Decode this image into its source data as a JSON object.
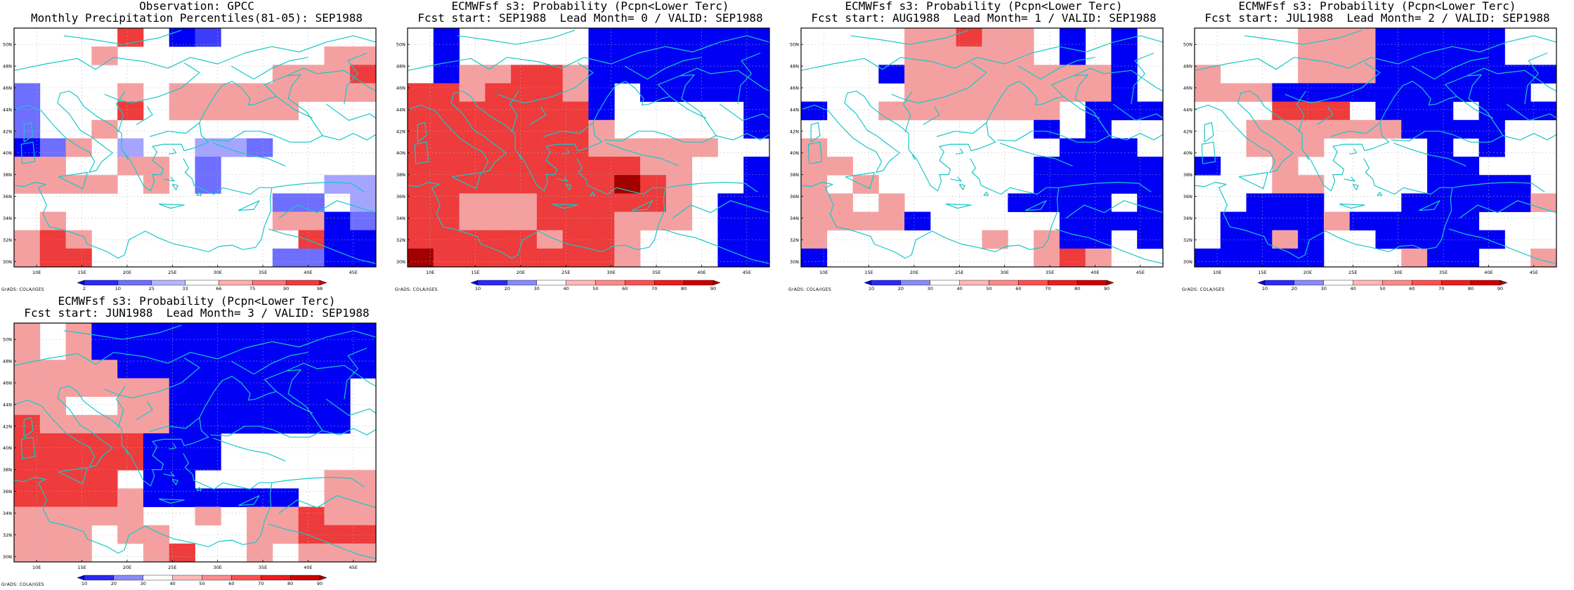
{
  "panels": [
    {
      "title_line1": "Observation: GPCC",
      "title_line2": "Monthly Precipitation Percentiles(81-05): SEP1988",
      "scale": "obs",
      "grid": [
        "0000R0B1000000",
        "000r00000000rr",
        "0000000000rrrR",
        "b000r0rrrrrrrr",
        "b000R0rrrrr000",
        "b00r0000000000",
        "Bbr0p00ppb0000",
        "rr00rr0b000000",
        "rrrr0r0b0000pp",
        "0000000000bb0p",
        "0r00000000rrBb",
        "rRr00000000RBB",
        "rRR0000000bbBB"
      ]
    },
    {
      "title_line1": "ECMWFsf s3: Probability (Pcpn<Lower Terc)",
      "title_line2": "Fcst start: SEP1988  Lead Month= 0 / VALID: SEP1988",
      "scale": "prob",
      "grid": [
        "0B00000BBBBBBB",
        "0B00000BBBBBBB",
        "0BrrRRrBBBBBBB",
        "RRrRRRrB0BBBBB",
        "RRRRRRRB00000B",
        "RRRRRRRr00000B",
        "RRRRRRRrrrrr00",
        "RRRRRRRRRrr00B",
        "RRRRRRRRDRr00B",
        "RRrrrRRRRRr0BB",
        "RRrrrRRRrrr0BB",
        "RRRRRrRRr000BB",
        "DRRRRRRRr000BB"
      ]
    },
    {
      "title_line1": "ECMWFsf s3: Probability (Pcpn<Lower Terc)",
      "title_line2": "Fcst start: AUG1988  Lead Month= 1 / VALID: SEP1988",
      "scale": "prob",
      "grid": [
        "0000rrRrr0B0B0",
        "0000rrrrr0B0B0",
        "000BrrrrrrrrB0",
        "0000rrrrrrrrB0",
        "B00rrrrrrr0BBB",
        "000000000B0B00",
        "r000000000BBB0",
        "rr0000000BBBBB",
        "r0r000000BBBBB",
        "rr0r0000BBBB0B",
        "rrrrB00000BBBB",
        "r000000r0rBB0B",
        "B00000000rRr00"
      ]
    },
    {
      "title_line1": "ECMWFsf s3: Probability (Pcpn<Lower Terc)",
      "title_line2": "Fcst start: JUL1988  Lead Month= 2 / VALID: SEP1988",
      "scale": "prob",
      "grid": [
        "0000rrrBBBBB00",
        "0000rrrBBBBB00",
        "r000rrrBBBBBBB",
        "rrrBBBBBBBBBB0",
        "000RRR0BBB0BBB",
        "00rrrrrrBBBB00",
        "00rrr0000B0B00",
        "B00r00000BB000",
        "000rr0000BBBB0",
        "00BBB000BBBBBr",
        "0BBBBrBBBBB000",
        "0BBrB00BBBBB00",
        "BBBBB000rBB00r"
      ]
    },
    {
      "title_line1": "ECMWFsf s3: Probability (Pcpn<Lower Terc)",
      "title_line2": "Fcst start: JUN1988  Lead Month= 3 / VALID: SEP1988",
      "scale": "prob",
      "grid": [
        "r0rBBBBBBBBBBB",
        "r0rBBBBBBBBBBB",
        "rrrrBBBBBBBBBB",
        "rrrrrrBBBBBBB0",
        "rr00rrBBBBBBB0",
        "RrrrrrBBBBBBB0",
        "RRRRRBBB000000",
        "RRRRRBBB000000",
        "RRRR0BB00000rr",
        "RRRRrBBBBBB0rr",
        "rrrrr00r0rrRrr",
        "rrr0rr000rrRRR",
        "rrr00rR00r0rrr"
      ]
    }
  ],
  "y_ticks": [
    "50N",
    "48N",
    "46N",
    "44N",
    "42N",
    "40N",
    "38N",
    "36N",
    "34N",
    "32N",
    "30N"
  ],
  "x_ticks": [
    "10E",
    "15E",
    "20E",
    "25E",
    "30E",
    "35E",
    "40E",
    "45E"
  ],
  "cell_colors": {
    "0": "#ffffff",
    "r": "#f5a0a0",
    "R": "#ee3b3b",
    "D": "#a00000",
    "b": "#6e6eff",
    "B": "#0000f5",
    "p": "#a5a5ff",
    "1": "#3c3cfa"
  },
  "scales": {
    "obs": {
      "labels": [
        "2",
        "10",
        "25",
        "33",
        "66",
        "75",
        "90",
        "98"
      ],
      "colors": [
        "#0000d0",
        "#2a2af5",
        "#6e6eff",
        "#b6b6ff",
        "#ffffff",
        "#ffb0b0",
        "#ff7575",
        "#f03a3a",
        "#d00000"
      ]
    },
    "prob": {
      "labels": [
        "10",
        "20",
        "30",
        "40",
        "50",
        "60",
        "70",
        "80",
        "90"
      ],
      "colors": [
        "#0000d0",
        "#2a2af5",
        "#8a8aff",
        "#ffffff",
        "#ffb8b8",
        "#ff8a8a",
        "#ff5050",
        "#ee1c1c",
        "#cc0000",
        "#a00000"
      ]
    }
  },
  "coast_color": "#17c8c8",
  "credit": "GrADS: COLA/IGES"
}
